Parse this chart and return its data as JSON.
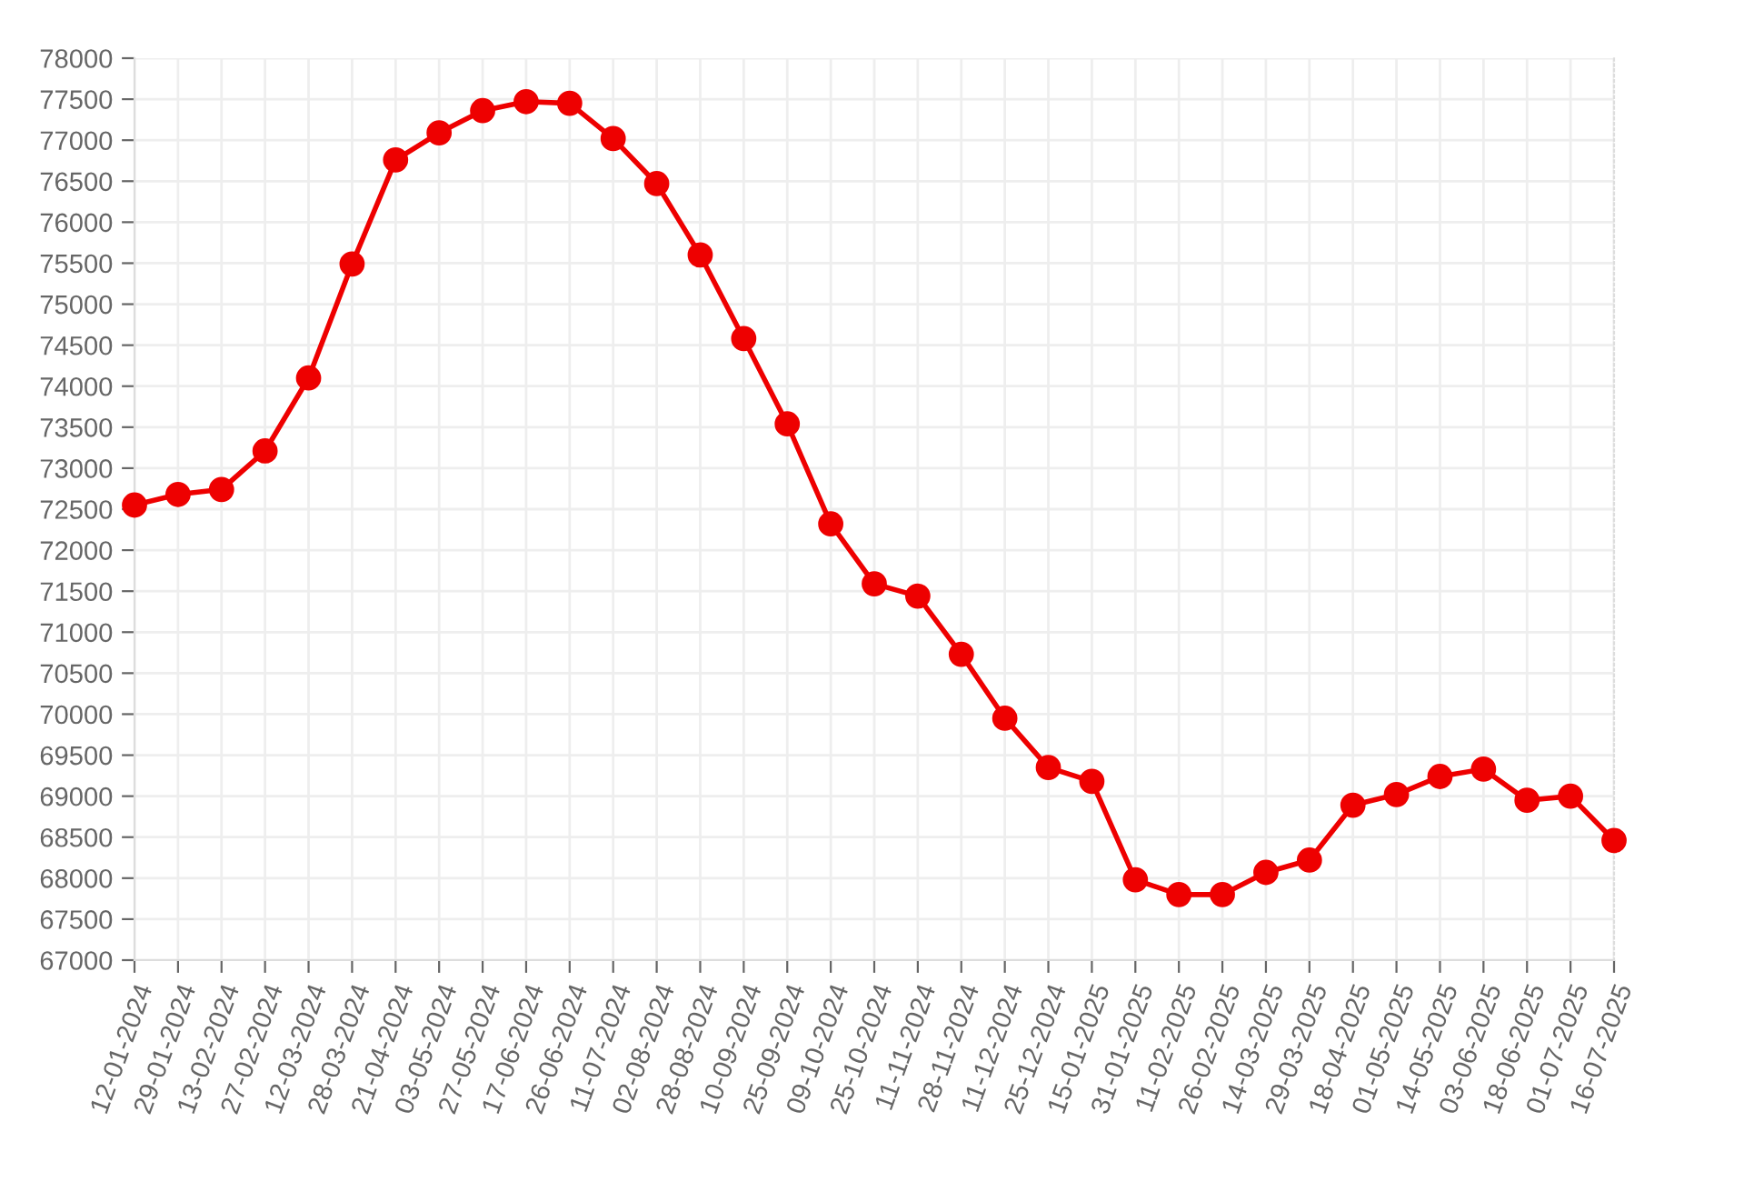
{
  "chart_data": {
    "type": "line",
    "categories": [
      "12-01-2024",
      "29-01-2024",
      "13-02-2024",
      "27-02-2024",
      "12-03-2024",
      "28-03-2024",
      "21-04-2024",
      "03-05-2024",
      "27-05-2024",
      "17-06-2024",
      "26-06-2024",
      "11-07-2024",
      "02-08-2024",
      "28-08-2024",
      "10-09-2024",
      "25-09-2024",
      "09-10-2024",
      "25-10-2024",
      "11-11-2024",
      "28-11-2024",
      "11-12-2024",
      "25-12-2024",
      "15-01-2025",
      "31-01-2025",
      "11-02-2025",
      "26-02-2025",
      "14-03-2025",
      "29-03-2025",
      "18-04-2025",
      "01-05-2025",
      "14-05-2025",
      "03-06-2025",
      "18-06-2025",
      "01-07-2025",
      "16-07-2025"
    ],
    "series": [
      {
        "color": "#ee0000",
        "values": [
          72550,
          72680,
          72740,
          73210,
          74100,
          75490,
          76760,
          77090,
          77360,
          77470,
          77450,
          77020,
          76470,
          75600,
          74580,
          73540,
          72320,
          71590,
          71440,
          70730,
          69950,
          69350,
          69180,
          67980,
          67800,
          67800,
          68070,
          68220,
          68890,
          69020,
          69240,
          69330,
          68950,
          69000,
          68460
        ]
      }
    ],
    "ylim": [
      67000,
      78000
    ],
    "yticks": [
      67000,
      67500,
      68000,
      68500,
      69000,
      69500,
      70000,
      70500,
      71000,
      71500,
      72000,
      72500,
      73000,
      73500,
      74000,
      74500,
      75000,
      75500,
      76000,
      76500,
      77000,
      77500,
      78000
    ],
    "grid": true,
    "marker": "circle",
    "line_style": "solid"
  }
}
